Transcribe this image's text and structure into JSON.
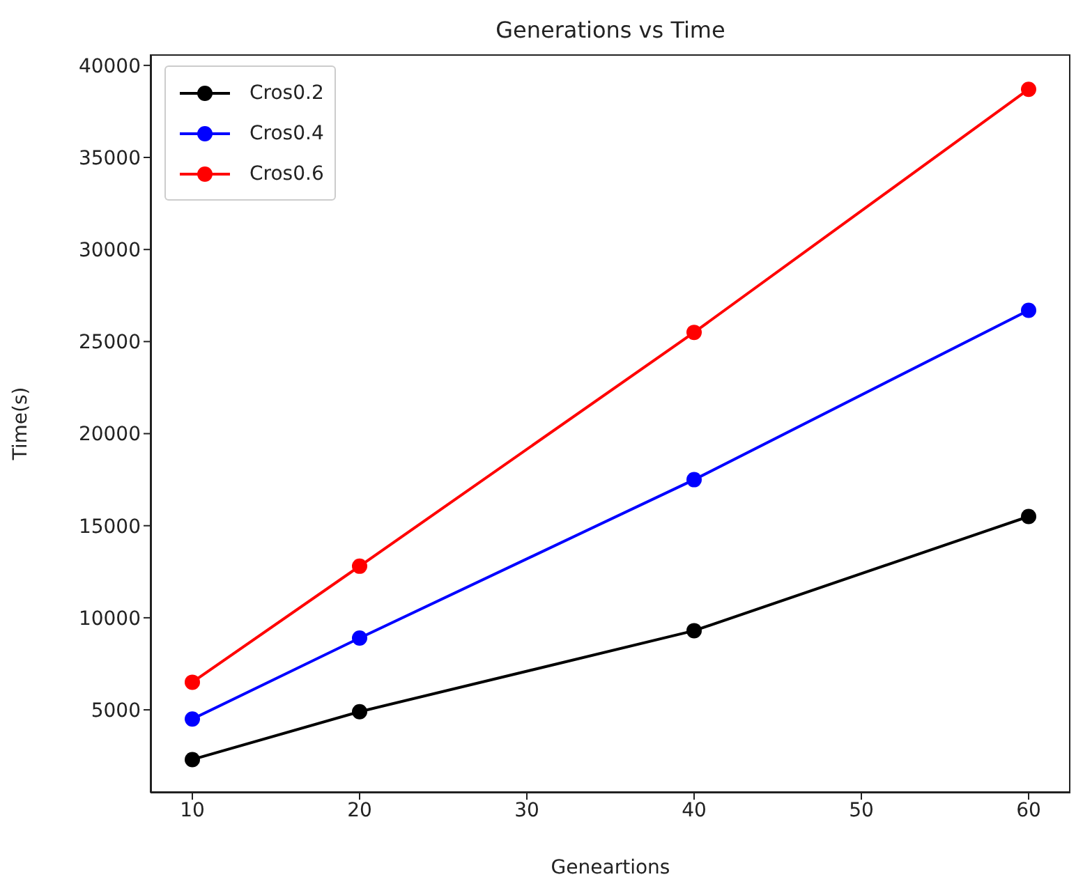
{
  "chart_data": {
    "type": "line",
    "title": "Generations vs Time",
    "xlabel": "Geneartions",
    "ylabel": "Time(s)",
    "x": [
      10,
      20,
      40,
      60
    ],
    "series": [
      {
        "name": "Cros0.2",
        "color": "#000000",
        "values": [
          2300,
          4900,
          9300,
          15500
        ]
      },
      {
        "name": "Cros0.4",
        "color": "#0000ff",
        "values": [
          4500,
          8900,
          17500,
          26700
        ]
      },
      {
        "name": "Cros0.6",
        "color": "#ff0000",
        "values": [
          6500,
          12800,
          25500,
          38700
        ]
      }
    ],
    "xlim": [
      7.5,
      62.5
    ],
    "xticks": [
      10,
      20,
      30,
      40,
      50,
      60
    ],
    "ylim": [
      500,
      40600
    ],
    "yticks": [
      5000,
      10000,
      15000,
      20000,
      25000,
      30000,
      35000,
      40000
    ],
    "grid": false,
    "legend": "top left",
    "marker": "circle",
    "line_style": "solid"
  }
}
